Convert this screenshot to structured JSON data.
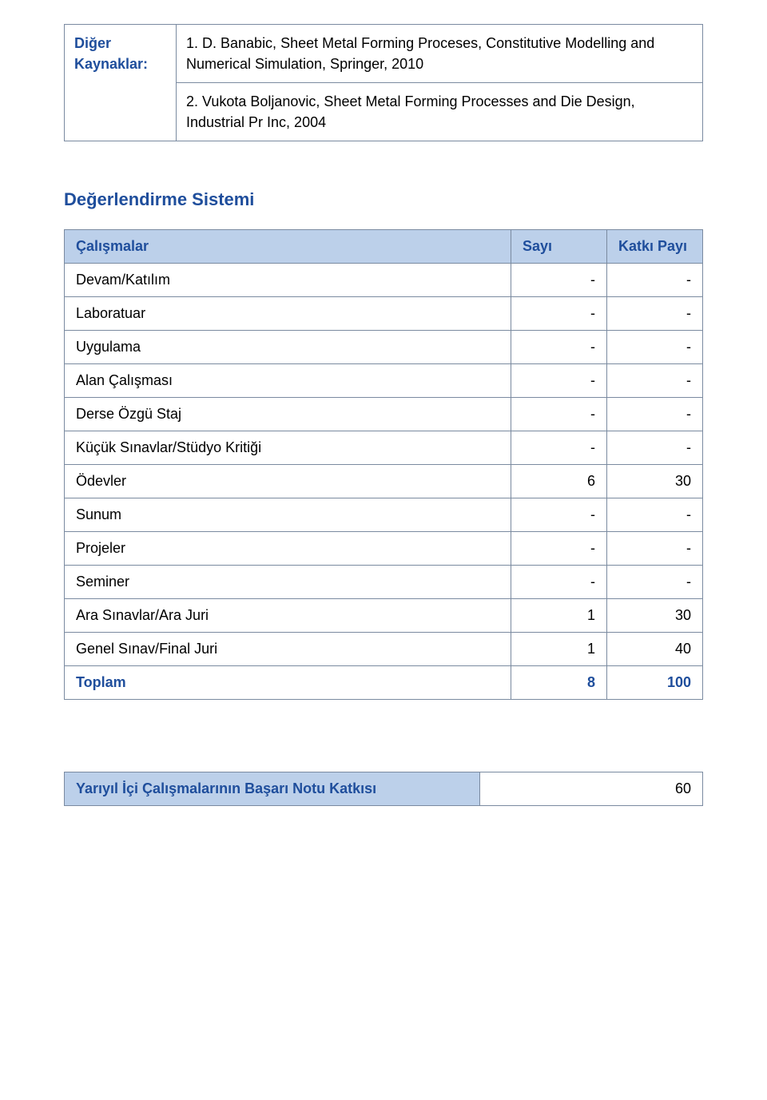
{
  "colors": {
    "heading": "#1f4e9c",
    "header_bg": "#bcd0ea",
    "border": "#7a8aa0",
    "text": "#000000",
    "page_bg": "#ffffff"
  },
  "fontsizes": {
    "body": 18,
    "section_title": 22
  },
  "references": {
    "label": "Diğer Kaynaklar:",
    "items": [
      "1. D. Banabic, Sheet Metal Forming Proceses, Constitutive Modelling and Numerical Simulation, Springer, 2010",
      "2. Vukota Boljanovic, Sheet Metal Forming Processes and Die Design, Industrial Pr Inc, 2004"
    ]
  },
  "assessment": {
    "title": "Değerlendirme Sistemi",
    "columns": [
      "Çalışmalar",
      "Sayı",
      "Katkı Payı"
    ],
    "rows": [
      {
        "name": "Devam/Katılım",
        "count": "-",
        "weight": "-"
      },
      {
        "name": "Laboratuar",
        "count": "-",
        "weight": "-"
      },
      {
        "name": "Uygulama",
        "count": "-",
        "weight": "-"
      },
      {
        "name": "Alan Çalışması",
        "count": "-",
        "weight": "-"
      },
      {
        "name": "Derse Özgü Staj",
        "count": "-",
        "weight": "-"
      },
      {
        "name": "Küçük Sınavlar/Stüdyo Kritiği",
        "count": "-",
        "weight": "-"
      },
      {
        "name": "Ödevler",
        "count": "6",
        "weight": "30"
      },
      {
        "name": "Sunum",
        "count": "-",
        "weight": "-"
      },
      {
        "name": "Projeler",
        "count": "-",
        "weight": "-"
      },
      {
        "name": "Seminer",
        "count": "-",
        "weight": "-"
      },
      {
        "name": "Ara Sınavlar/Ara Juri",
        "count": "1",
        "weight": "30"
      },
      {
        "name": "Genel Sınav/Final Juri",
        "count": "1",
        "weight": "40"
      }
    ],
    "total": {
      "label": "Toplam",
      "count": "8",
      "weight": "100"
    }
  },
  "contribution": {
    "label": "Yarıyıl İçi Çalışmalarının Başarı Notu Katkısı",
    "value": "60"
  }
}
